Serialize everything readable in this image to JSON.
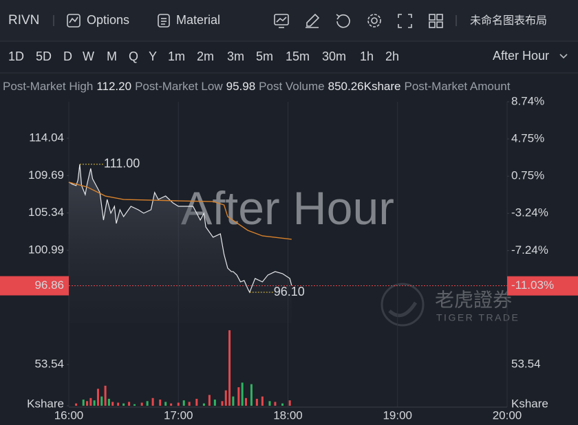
{
  "toolbar": {
    "symbol": "RIVN",
    "options": "Options",
    "material": "Material",
    "layout": "未命名图表布局"
  },
  "periods": {
    "items": [
      "1D",
      "5D",
      "D",
      "W",
      "M",
      "Q",
      "Y",
      "1m",
      "2m",
      "3m",
      "5m",
      "15m",
      "30m",
      "1h",
      "2h"
    ],
    "active": 0,
    "session": "After Hour"
  },
  "stats": [
    {
      "label": "Post-Market High",
      "value": "112.20"
    },
    {
      "label": "Post-Market Low",
      "value": "95.98"
    },
    {
      "label": "Post Volume",
      "value": "850.26Kshare"
    },
    {
      "label": "Post-Market Amount"
    }
  ],
  "watermark": {
    "text": "After Hour",
    "brand": "老虎證券",
    "brand_en": "TIGER TRADE"
  },
  "chart_data": [
    {
      "type": "line",
      "xlim": [
        0,
        240
      ],
      "xticks": [
        {
          "value": 0,
          "label": "16:00"
        },
        {
          "value": 60,
          "label": "17:00"
        },
        {
          "value": 120,
          "label": "18:00"
        },
        {
          "value": 180,
          "label": "19:00"
        },
        {
          "value": 240,
          "label": "20:00"
        }
      ],
      "ylim": [
        92.5,
        118.28
      ],
      "yticks": [
        114.04,
        109.69,
        105.34,
        100.99
      ],
      "y2lim": [
        -15.04,
        8.74
      ],
      "y2ticks": [
        {
          "value": 8.74,
          "label": "8.74%"
        },
        {
          "value": 4.75,
          "label": "4.75%"
        },
        {
          "value": 0.75,
          "label": "0.75%"
        },
        {
          "value": -3.24,
          "label": "-3.24%"
        },
        {
          "value": -7.24,
          "label": "-7.24%"
        }
      ],
      "up_color": "#2fb562",
      "down_color": "#e5484d",
      "last_price": 96.86,
      "last_change": {
        "value": -11.03,
        "label": "-11.03%"
      },
      "series": [
        {
          "color": "#e6e8eb",
          "x": [
            0,
            2,
            4,
            5,
            6,
            7,
            9,
            10,
            12,
            13,
            15,
            17,
            19,
            21,
            23,
            25,
            26,
            28,
            30,
            34,
            38,
            41,
            45,
            47,
            49,
            53,
            57,
            60,
            64,
            68,
            70,
            72,
            74,
            75,
            79,
            83,
            85,
            87,
            89,
            90,
            92,
            94,
            96,
            98,
            99,
            102,
            106,
            109,
            113,
            117,
            121,
            122
          ],
          "values": [
            108.92,
            108.68,
            108.52,
            109.16,
            111.0,
            108.52,
            107.47,
            108.68,
            110.52,
            109.32,
            108.52,
            107.72,
            104.51,
            106.91,
            105.31,
            106.11,
            104.11,
            105.71,
            104.91,
            106.11,
            105.71,
            105.31,
            105.71,
            107.72,
            106.91,
            107.31,
            106.51,
            106.11,
            106.11,
            106.11,
            105.31,
            104.51,
            105.31,
            103.71,
            102.51,
            102.91,
            100.51,
            98.91,
            98.51,
            98.51,
            98.11,
            97.31,
            97.47,
            96.51,
            96.1,
            97.71,
            97.31,
            98.11,
            98.51,
            98.27,
            97.71,
            96.9
          ]
        },
        {
          "color": "#d9822b",
          "x": [
            0,
            10,
            20,
            30,
            45,
            60,
            79,
            85,
            87,
            98,
            106,
            122
          ],
          "values": [
            108.92,
            108.36,
            107.31,
            106.91,
            106.83,
            106.75,
            106.67,
            106.27,
            104.91,
            103.31,
            102.67,
            102.27
          ]
        }
      ],
      "annotations": [
        {
          "text": "111.00",
          "x": 6,
          "y": 111.0
        },
        {
          "text": "96.10",
          "x": 99,
          "y": 96.1
        }
      ],
      "annotation_color": "#e8c547"
    },
    {
      "type": "bar",
      "xlim": [
        0,
        240
      ],
      "ylim": [
        0,
        107.1
      ],
      "yticks": [
        {
          "value": 0,
          "label": "Kshare"
        },
        53.54
      ],
      "x": [
        4,
        8,
        10,
        12,
        14,
        16,
        18,
        20,
        22,
        24,
        27,
        30,
        33,
        36,
        40,
        43,
        46,
        50,
        53,
        56,
        60,
        63,
        66,
        70,
        74,
        77,
        80,
        84,
        86,
        88,
        90,
        93,
        95,
        97,
        100,
        103,
        106,
        110,
        113,
        117,
        121
      ],
      "values": [
        3,
        8,
        6,
        10,
        7,
        22,
        12,
        26,
        9,
        5,
        4,
        3,
        5,
        2,
        4,
        6,
        10,
        8,
        5,
        3,
        4,
        7,
        5,
        9,
        3,
        14,
        8,
        6,
        20,
        98,
        12,
        24,
        30,
        10,
        28,
        9,
        12,
        6,
        5,
        3,
        7
      ],
      "colors": [
        "#e5484d",
        "#2fb562",
        "#e5484d",
        "#e5484d",
        "#2fb562",
        "#e5484d",
        "#2fb562",
        "#e5484d",
        "#2fb562",
        "#e5484d",
        "#e5484d",
        "#2fb562",
        "#e5484d",
        "#2fb562",
        "#e5484d",
        "#2fb562",
        "#e5484d",
        "#e5484d",
        "#2fb562",
        "#e5484d",
        "#e5484d",
        "#2fb562",
        "#e5484d",
        "#e5484d",
        "#2fb562",
        "#e5484d",
        "#2fb562",
        "#e5484d",
        "#e5484d",
        "#e5484d",
        "#2fb562",
        "#e5484d",
        "#2fb562",
        "#e5484d",
        "#2fb562",
        "#e5484d",
        "#e5484d",
        "#2fb562",
        "#e5484d",
        "#2fb562",
        "#e5484d"
      ]
    }
  ]
}
